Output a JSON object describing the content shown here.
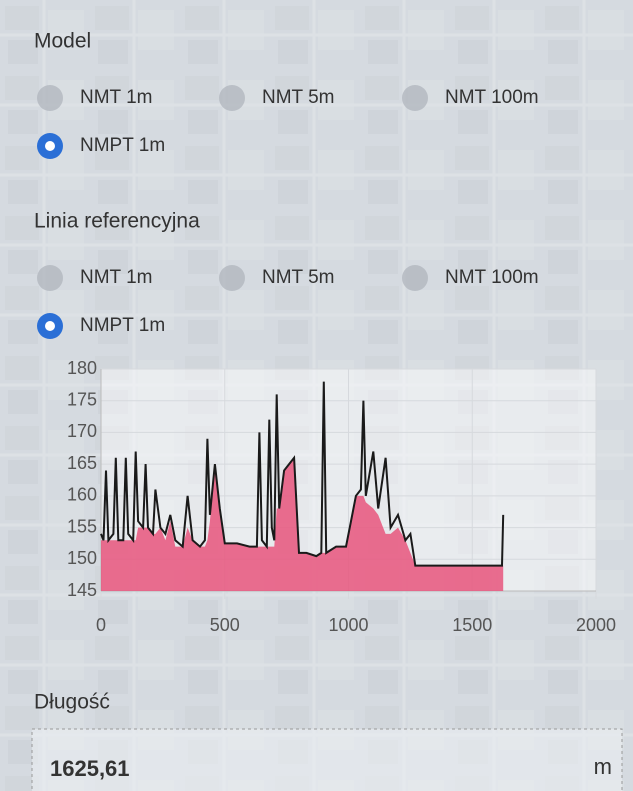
{
  "model": {
    "title": "Model",
    "options": [
      "NMT 1m",
      "NMT 5m",
      "NMT 100m",
      "NMPT 1m"
    ],
    "selected": 3
  },
  "reference": {
    "title": "Linia referencyjna",
    "options": [
      "NMT 1m",
      "NMT 5m",
      "NMT 100m",
      "NMPT 1m"
    ],
    "selected": 3
  },
  "chart_data": {
    "type": "line",
    "x": [
      0,
      10,
      20,
      30,
      50,
      60,
      70,
      90,
      100,
      110,
      130,
      140,
      150,
      170,
      180,
      190,
      210,
      220,
      240,
      260,
      280,
      300,
      330,
      350,
      370,
      400,
      420,
      430,
      440,
      460,
      480,
      500,
      550,
      600,
      630,
      640,
      650,
      670,
      680,
      690,
      700,
      710,
      720,
      740,
      760,
      780,
      800,
      830,
      870,
      890,
      900,
      910,
      950,
      990,
      1010,
      1030,
      1050,
      1060,
      1070,
      1100,
      1120,
      1150,
      1170,
      1200,
      1230,
      1250,
      1270,
      1290,
      1400,
      1500,
      1600,
      1620,
      1625
    ],
    "series": [
      {
        "color": "#1a1a1a",
        "values": [
          154,
          153,
          164,
          153,
          154,
          166,
          153,
          153,
          166,
          154,
          153,
          167,
          156,
          155,
          165,
          155,
          154,
          161,
          155,
          154,
          157,
          153,
          152,
          160,
          153,
          152,
          153,
          169,
          157,
          165,
          158,
          152.5,
          152.5,
          152,
          152,
          170,
          153,
          152,
          172,
          155,
          153,
          176,
          158,
          164,
          165,
          166,
          151,
          151,
          150.5,
          151,
          178,
          151,
          152,
          152,
          156,
          160,
          161,
          175,
          160,
          167,
          158,
          166,
          155,
          157,
          153,
          154,
          149,
          149,
          149,
          149,
          149,
          149,
          157
        ]
      },
      {
        "color": "#e8557d",
        "fill": true,
        "values": [
          153,
          153,
          153,
          153,
          153,
          153,
          153,
          153,
          153,
          153,
          153,
          153,
          155,
          155,
          155,
          155,
          154,
          154,
          155,
          153,
          156,
          152,
          152,
          155,
          153,
          152,
          152,
          153,
          156,
          164,
          158,
          152.5,
          152.5,
          152,
          152,
          152,
          152,
          152,
          152,
          152,
          152,
          158,
          158,
          164,
          165,
          166,
          151,
          151,
          150.5,
          151,
          151,
          151,
          152,
          152,
          156,
          160,
          160,
          160,
          159,
          158,
          157,
          154,
          154,
          155,
          153,
          151,
          149,
          149,
          149,
          149,
          149,
          149,
          149
        ]
      }
    ],
    "xlim": [
      0,
      2000
    ],
    "xticks": [
      0,
      500,
      1000,
      1500,
      2000
    ],
    "ylim": [
      145,
      180
    ],
    "yticks": [
      145,
      150,
      155,
      160,
      165,
      170,
      175,
      180
    ],
    "grid": true
  },
  "length": {
    "label": "Długość",
    "value": "1625,61",
    "unit": "m"
  }
}
